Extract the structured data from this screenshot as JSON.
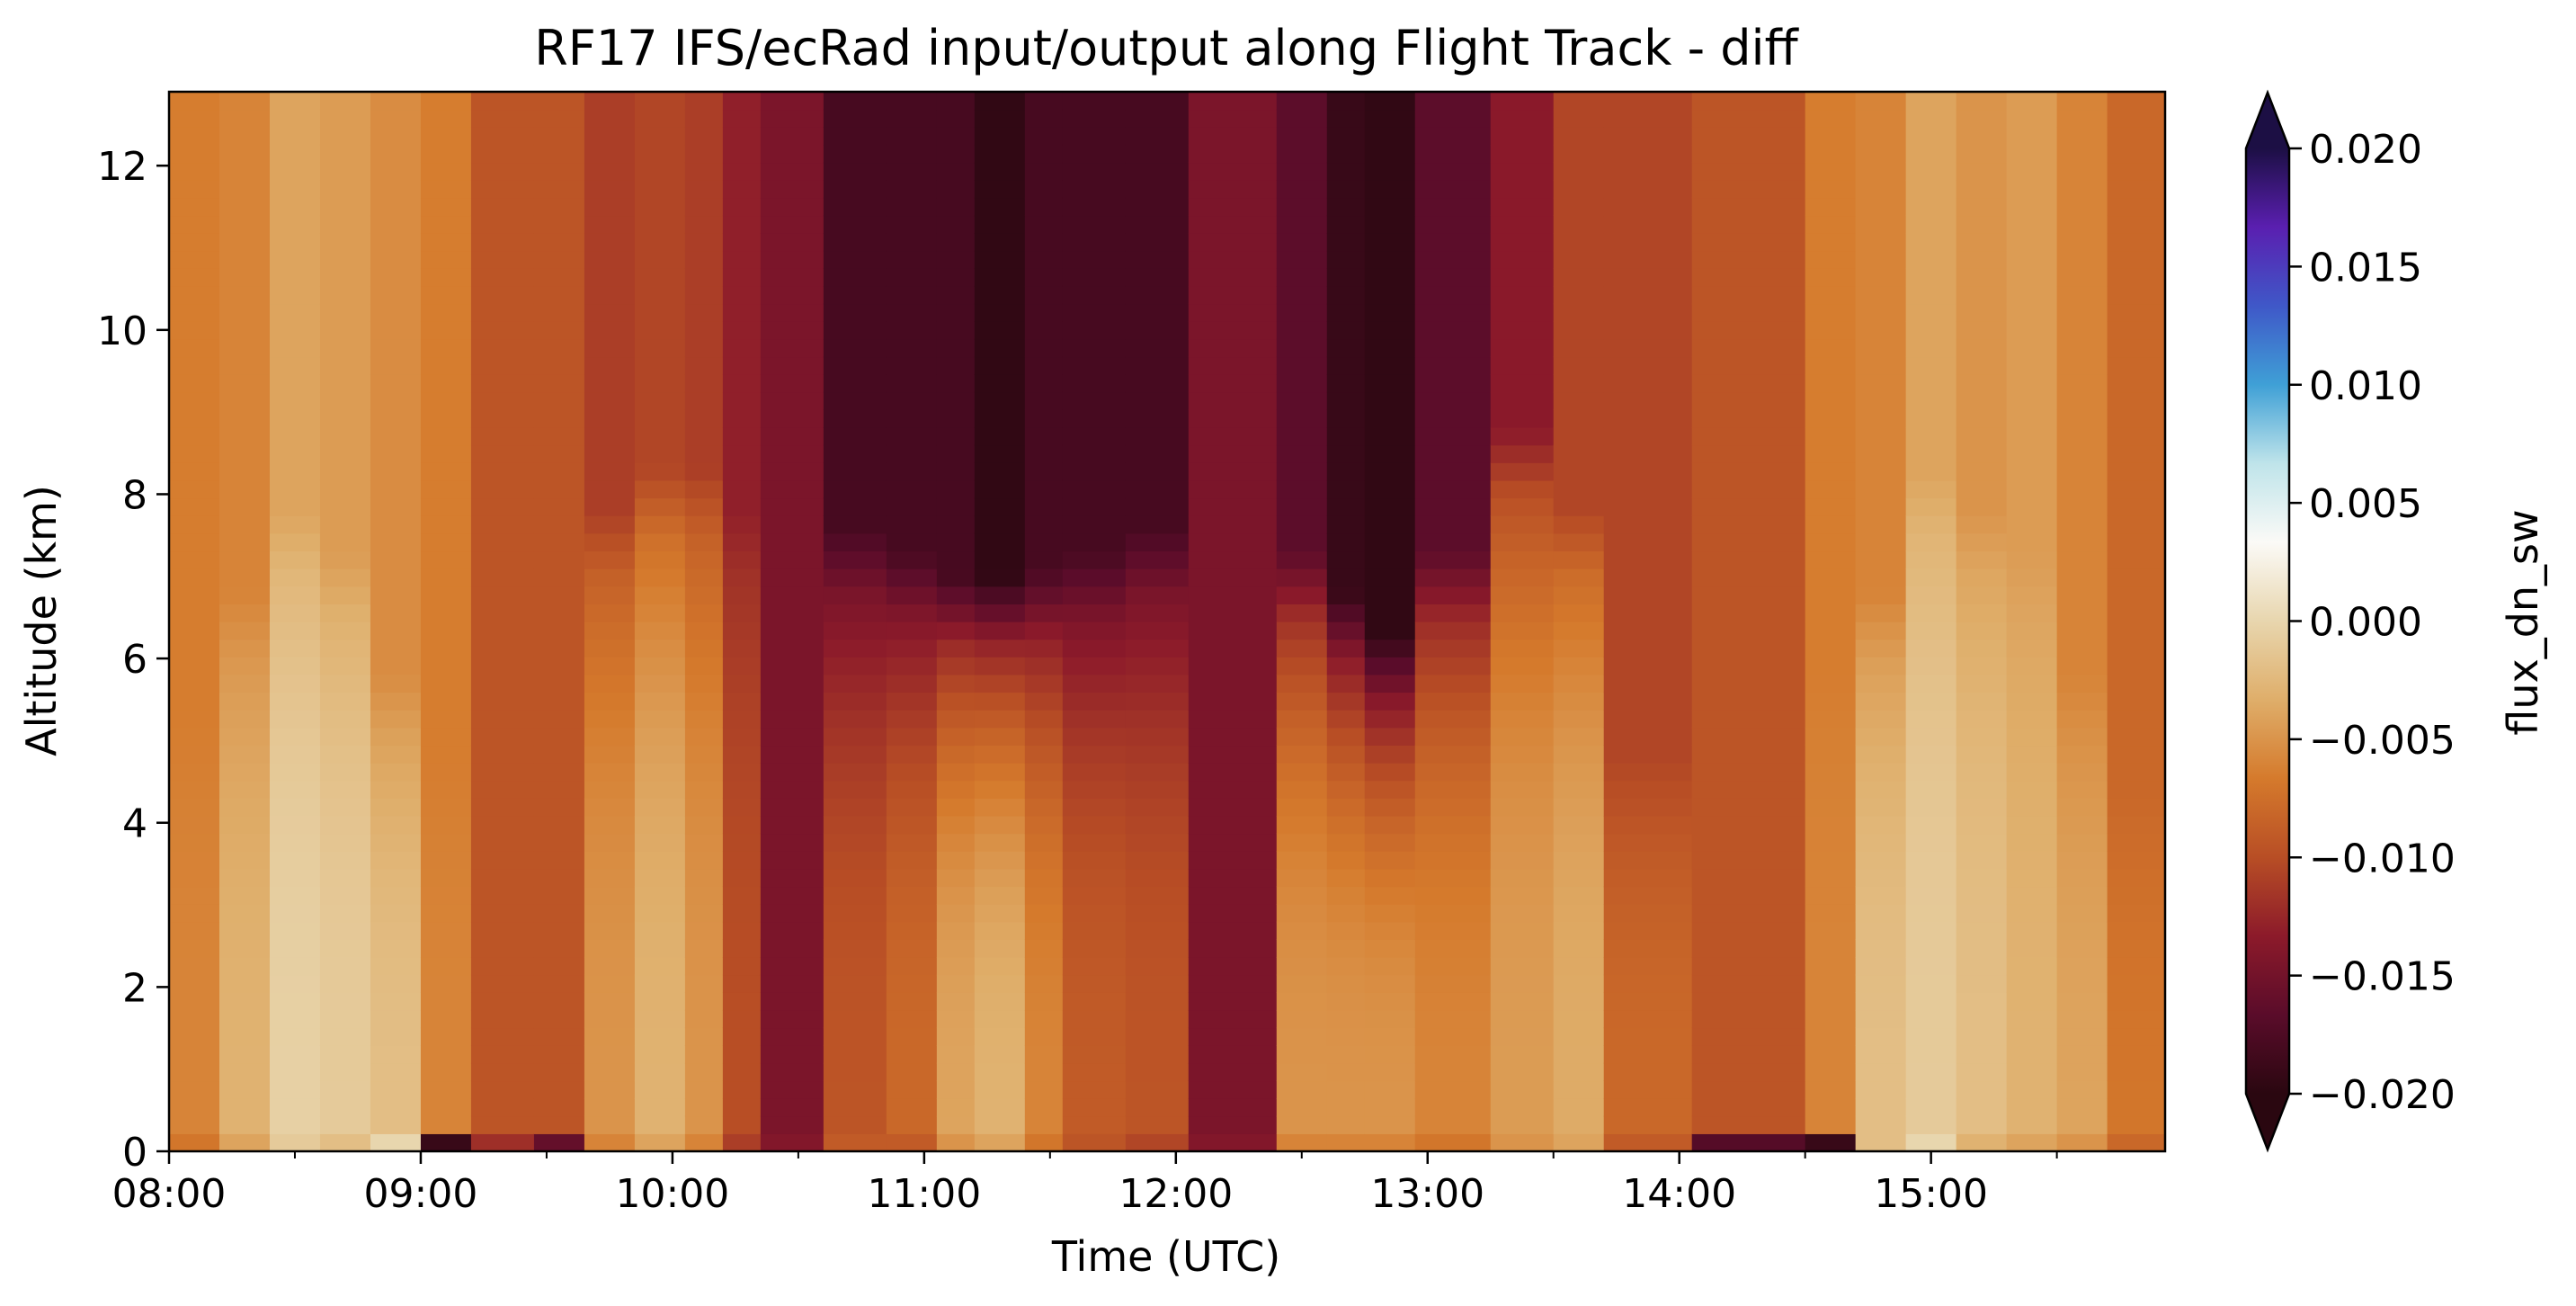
{
  "chart_data": {
    "type": "heatmap",
    "title": "RF17 IFS/ecRad input/output along Flight Track - diff",
    "xlabel": "Time (UTC)",
    "ylabel": "Altitude (km)",
    "colorbar_label": "flux_dn_sw",
    "x_tick_labels": [
      "08:00",
      "09:00",
      "10:00",
      "11:00",
      "12:00",
      "13:00",
      "14:00",
      "15:00"
    ],
    "x_ticks_hours": [
      8,
      9,
      10,
      11,
      12,
      13,
      14,
      15
    ],
    "xlim_hours": [
      8.0,
      15.93
    ],
    "y_ticks": [
      0,
      2,
      4,
      6,
      8,
      10,
      12
    ],
    "ylim": [
      0,
      12.9
    ],
    "colorbar": {
      "vmin": -0.02,
      "vmax": 0.02,
      "ticks": [
        -0.02,
        -0.015,
        -0.01,
        -0.005,
        0.0,
        0.005,
        0.01,
        0.015,
        0.02
      ],
      "tick_labels": [
        "−0.020",
        "−0.015",
        "−0.010",
        "−0.005",
        "0.000",
        "0.005",
        "0.010",
        "0.015",
        "0.020"
      ],
      "extend": "both",
      "colors": [
        "#2a0710",
        "#5a0c2a",
        "#8c1a2a",
        "#b84e25",
        "#d57a2c",
        "#dfae6a",
        "#e8d6ae",
        "#fbfaf7",
        "#bfe4ea",
        "#3fa0d6",
        "#3f58c8",
        "#5a1fb0",
        "#1c0f44"
      ]
    },
    "column_times_hours": [
      8.0,
      8.2,
      8.4,
      8.6,
      8.8,
      9.0,
      9.2,
      9.4,
      9.6,
      9.8,
      10.0,
      10.2,
      10.35,
      10.6,
      10.85,
      11.0,
      11.2,
      11.4,
      11.6,
      11.8,
      12.0,
      12.1,
      12.4,
      12.6,
      12.8,
      13.0,
      13.25,
      13.5,
      13.7,
      14.0,
      14.2,
      14.5,
      14.7,
      14.9,
      15.1,
      15.3,
      15.5,
      15.7,
      15.93
    ],
    "column_profiles": [
      {
        "t0": 8.0,
        "t1": 8.2,
        "surface": -0.007,
        "low": -0.006,
        "cloud_top_km": 4.5,
        "upper": -0.0065
      },
      {
        "t0": 8.2,
        "t1": 8.4,
        "surface": -0.004,
        "low": -0.003,
        "cloud_top_km": 6.0,
        "upper": -0.006
      },
      {
        "t0": 8.4,
        "t1": 8.6,
        "surface": -0.001,
        "low": -0.0005,
        "cloud_top_km": 7.0,
        "upper": -0.004
      },
      {
        "t0": 8.6,
        "t1": 8.8,
        "surface": -0.002,
        "low": -0.001,
        "cloud_top_km": 6.5,
        "upper": -0.0045
      },
      {
        "t0": 8.8,
        "t1": 9.0,
        "surface": 0.0,
        "low": -0.002,
        "cloud_top_km": 5.0,
        "upper": -0.0055
      },
      {
        "t0": 9.0,
        "t1": 9.2,
        "surface": -0.019,
        "low": -0.006,
        "cloud_top_km": 4.0,
        "upper": -0.0065
      },
      {
        "t0": 9.2,
        "t1": 9.45,
        "surface": -0.012,
        "low": -0.0095,
        "cloud_top_km": 0.0,
        "upper": -0.0095
      },
      {
        "t0": 9.45,
        "t1": 9.65,
        "surface": -0.016,
        "low": -0.0095,
        "cloud_top_km": 0.0,
        "upper": -0.0095
      },
      {
        "t0": 9.65,
        "t1": 9.85,
        "surface": -0.006,
        "low": -0.005,
        "cloud_top_km": 7.0,
        "upper": -0.011
      },
      {
        "t0": 9.85,
        "t1": 10.05,
        "surface": -0.004,
        "low": -0.003,
        "cloud_top_km": 7.5,
        "upper": -0.0105
      },
      {
        "t0": 10.05,
        "t1": 10.2,
        "surface": -0.006,
        "low": -0.005,
        "cloud_top_km": 7.5,
        "upper": -0.011
      },
      {
        "t0": 10.2,
        "t1": 10.35,
        "surface": -0.011,
        "low": -0.01,
        "cloud_top_km": 7.0,
        "upper": -0.013
      },
      {
        "t0": 10.35,
        "t1": 10.6,
        "surface": -0.014,
        "low": -0.014,
        "cloud_top_km": 0.0,
        "upper": -0.0145
      },
      {
        "t0": 10.6,
        "t1": 10.85,
        "surface": -0.009,
        "low": -0.0095,
        "cloud_top_km": 6.8,
        "upper": -0.018
      },
      {
        "t0": 10.85,
        "t1": 11.05,
        "surface": -0.009,
        "low": -0.008,
        "cloud_top_km": 6.5,
        "upper": -0.018
      },
      {
        "t0": 11.05,
        "t1": 11.2,
        "surface": -0.005,
        "low": -0.004,
        "cloud_top_km": 6.2,
        "upper": -0.018
      },
      {
        "t0": 11.2,
        "t1": 11.4,
        "surface": -0.004,
        "low": -0.003,
        "cloud_top_km": 6.2,
        "upper": -0.0195
      },
      {
        "t0": 11.4,
        "t1": 11.55,
        "surface": -0.007,
        "low": -0.006,
        "cloud_top_km": 6.3,
        "upper": -0.018
      },
      {
        "t0": 11.55,
        "t1": 11.8,
        "surface": -0.0095,
        "low": -0.009,
        "cloud_top_km": 6.5,
        "upper": -0.018
      },
      {
        "t0": 11.8,
        "t1": 12.05,
        "surface": -0.0105,
        "low": -0.0095,
        "cloud_top_km": 6.8,
        "upper": -0.018
      },
      {
        "t0": 12.05,
        "t1": 12.4,
        "surface": -0.014,
        "low": -0.0135,
        "cloud_top_km": 0.0,
        "upper": -0.0145
      },
      {
        "t0": 12.4,
        "t1": 12.6,
        "surface": -0.006,
        "low": -0.005,
        "cloud_top_km": 6.5,
        "upper": -0.0165
      },
      {
        "t0": 12.6,
        "t1": 12.75,
        "surface": -0.006,
        "low": -0.005,
        "cloud_top_km": 6.0,
        "upper": -0.019
      },
      {
        "t0": 12.75,
        "t1": 12.95,
        "surface": -0.006,
        "low": -0.005,
        "cloud_top_km": 5.5,
        "upper": -0.0195
      },
      {
        "t0": 12.95,
        "t1": 13.25,
        "surface": -0.007,
        "low": -0.006,
        "cloud_top_km": 6.5,
        "upper": -0.0165
      },
      {
        "t0": 13.25,
        "t1": 13.5,
        "surface": -0.005,
        "low": -0.0045,
        "cloud_top_km": 8.0,
        "upper": -0.0135
      },
      {
        "t0": 13.5,
        "t1": 13.7,
        "surface": -0.004,
        "low": -0.0035,
        "cloud_top_km": 7.0,
        "upper": -0.0105
      },
      {
        "t0": 13.7,
        "t1": 14.05,
        "surface": -0.009,
        "low": -0.008,
        "cloud_top_km": 4.0,
        "upper": -0.0105
      },
      {
        "t0": 14.05,
        "t1": 14.5,
        "surface": -0.017,
        "low": -0.0095,
        "cloud_top_km": 0.0,
        "upper": -0.0095
      },
      {
        "t0": 14.5,
        "t1": 14.7,
        "surface": -0.019,
        "low": -0.006,
        "cloud_top_km": 5.0,
        "upper": -0.0065
      },
      {
        "t0": 14.7,
        "t1": 14.9,
        "surface": -0.002,
        "low": -0.002,
        "cloud_top_km": 6.0,
        "upper": -0.006
      },
      {
        "t0": 14.9,
        "t1": 15.1,
        "surface": 0.0,
        "low": -0.001,
        "cloud_top_km": 7.5,
        "upper": -0.004
      },
      {
        "t0": 15.1,
        "t1": 15.3,
        "surface": -0.003,
        "low": -0.002,
        "cloud_top_km": 7.0,
        "upper": -0.005
      },
      {
        "t0": 15.3,
        "t1": 15.5,
        "surface": -0.004,
        "low": -0.003,
        "cloud_top_km": 6.5,
        "upper": -0.0045
      },
      {
        "t0": 15.5,
        "t1": 15.7,
        "surface": -0.005,
        "low": -0.004,
        "cloud_top_km": 5.0,
        "upper": -0.006
      },
      {
        "t0": 15.7,
        "t1": 15.93,
        "surface": -0.008,
        "low": -0.007,
        "cloud_top_km": 3.5,
        "upper": -0.008
      }
    ]
  }
}
